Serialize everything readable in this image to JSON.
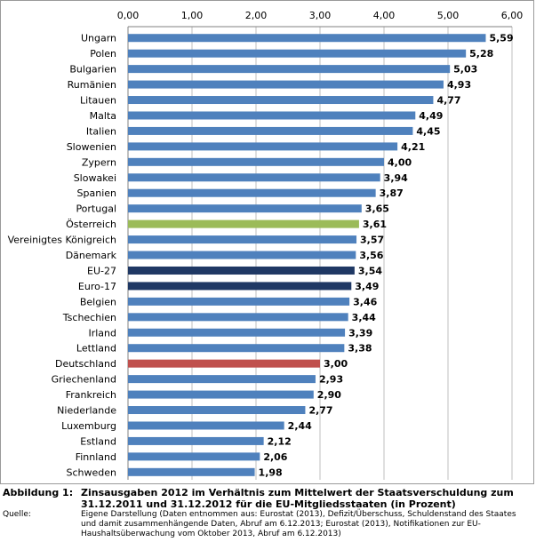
{
  "chart_data": {
    "type": "bar",
    "orientation": "horizontal",
    "title": "",
    "xlabel": "",
    "ylabel": "",
    "xlim": [
      0,
      6
    ],
    "x_ticks": [
      0,
      1,
      2,
      3,
      4,
      5,
      6
    ],
    "x_tick_labels": [
      "0,00",
      "1,00",
      "2,00",
      "3,00",
      "4,00",
      "5,00",
      "6,00"
    ],
    "grid": true,
    "axis_position": "top",
    "categories": [
      "Ungarn",
      "Polen",
      "Bulgarien",
      "Rumänien",
      "Litauen",
      "Malta",
      "Italien",
      "Slowenien",
      "Zypern",
      "Slowakei",
      "Spanien",
      "Portugal",
      "Österreich",
      "Vereinigtes Königreich",
      "Dänemark",
      "EU-27",
      "Euro-17",
      "Belgien",
      "Tschechien",
      "Irland",
      "Lettland",
      "Deutschland",
      "Griechenland",
      "Frankreich",
      "Niederlande",
      "Luxemburg",
      "Estland",
      "Finnland",
      "Schweden"
    ],
    "values": [
      5.59,
      5.28,
      5.03,
      4.93,
      4.77,
      4.49,
      4.45,
      4.21,
      4.0,
      3.94,
      3.87,
      3.65,
      3.61,
      3.57,
      3.56,
      3.54,
      3.49,
      3.46,
      3.44,
      3.39,
      3.38,
      3.0,
      2.93,
      2.9,
      2.77,
      2.44,
      2.12,
      2.06,
      1.98
    ],
    "value_labels": [
      "5,59",
      "5,28",
      "5,03",
      "4,93",
      "4,77",
      "4,49",
      "4,45",
      "4,21",
      "4,00",
      "3,94",
      "3,87",
      "3,65",
      "3,61",
      "3,57",
      "3,56",
      "3,54",
      "3,49",
      "3,46",
      "3,44",
      "3,39",
      "3,38",
      "3,00",
      "2,93",
      "2,90",
      "2,77",
      "2,44",
      "2,12",
      "2,06",
      "1,98"
    ],
    "default_color": "#4f81bd",
    "highlight_colors": {
      "Österreich": "#9bbb59",
      "EU-27": "#1f3864",
      "Euro-17": "#1f3864",
      "Deutschland": "#c0504d"
    }
  },
  "caption": {
    "figure_label": "Abbildung 1:",
    "figure_text": "Zinsausgaben 2012 im Verhältnis zum Mittelwert der Staatsverschuldung zum 31.12.2011 und 31.12.2012 für die EU-Mitgliedsstaaten (in Prozent)",
    "source_label": "Quelle:",
    "source_text": "Eigene Darstellung (Daten entnommen aus: Eurostat (2013), Defizit/Überschuss, Schuldenstand des Staates und damit zusammenhängende Daten, Abruf am 6.12.2013; Eurostat (2013), Notifikationen zur EU-Haushaltsüberwachung vom Oktober 2013, Abruf am 6.12.2013)"
  }
}
